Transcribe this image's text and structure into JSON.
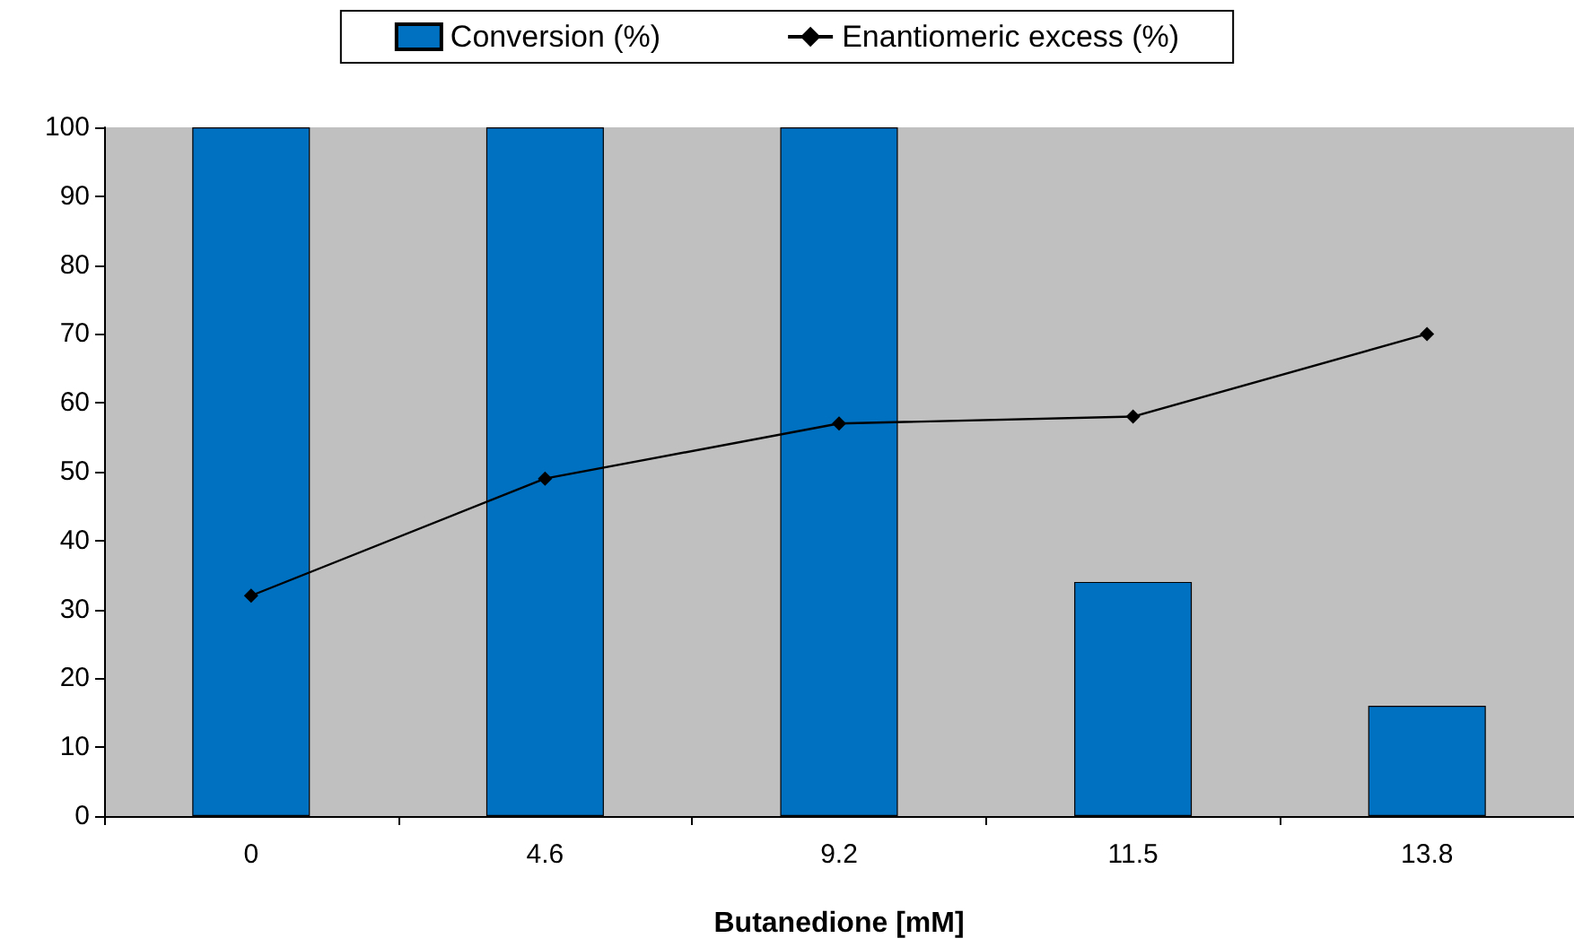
{
  "chart_data": {
    "type": "bar",
    "xlabel": "Butanedione [mM]",
    "categories": [
      "0",
      "4.6",
      "9.2",
      "11.5",
      "13.8"
    ],
    "series": [
      {
        "name": "Conversion (%)",
        "color": "#0070c0",
        "values": [
          100,
          100,
          100,
          34,
          16
        ]
      },
      {
        "name": "Enantiomeric excess (%)",
        "type": "line",
        "color": "#000000",
        "values": [
          32,
          49,
          57,
          58,
          70
        ]
      }
    ],
    "marker": "diamond",
    "ylim": [
      0,
      100
    ],
    "yticks": [
      0,
      10,
      20,
      30,
      40,
      50,
      60,
      70,
      80,
      90,
      100
    ],
    "grid": false,
    "legend": "top"
  }
}
